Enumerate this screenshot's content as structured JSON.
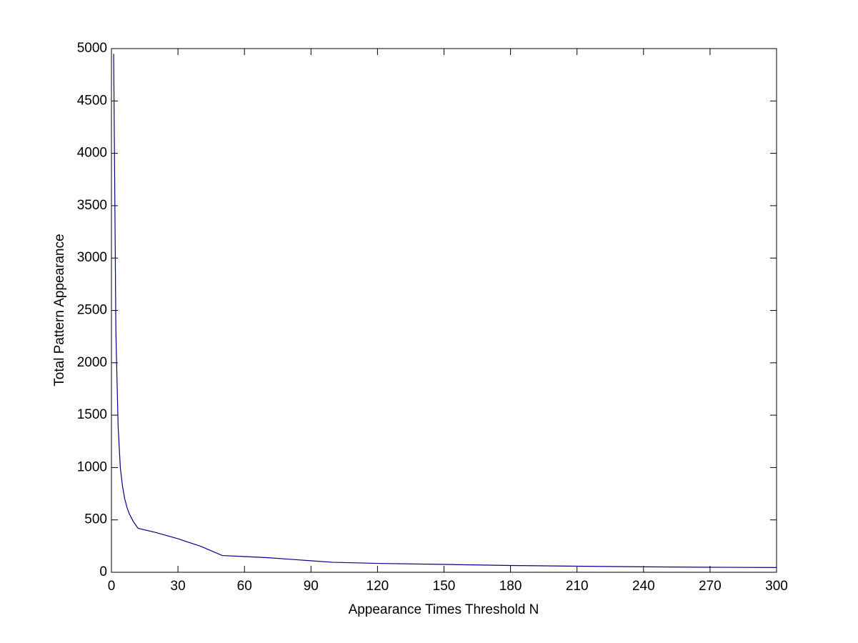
{
  "chart_data": {
    "type": "line",
    "x_label": "Appearance Times Threshold N",
    "y_label": "Total Pattern Appearance",
    "x": [
      1,
      2,
      3,
      4,
      5,
      6,
      7,
      8,
      10,
      12,
      20,
      30,
      40,
      50,
      60,
      70,
      80,
      90,
      100,
      120,
      150,
      180,
      210,
      240,
      270,
      300
    ],
    "series": [
      {
        "color": "#00008b",
        "values": [
          4950,
          2300,
          1400,
          1000,
          820,
          700,
          620,
          560,
          480,
          420,
          380,
          320,
          250,
          160,
          150,
          140,
          125,
          110,
          95,
          85,
          75,
          65,
          58,
          52,
          48,
          45
        ]
      }
    ],
    "xlim": [
      0,
      300
    ],
    "xticks": [
      0,
      30,
      60,
      90,
      120,
      150,
      180,
      210,
      240,
      270,
      300
    ],
    "ylim": [
      0,
      5000
    ],
    "yticks": [
      0,
      500,
      1000,
      1500,
      2000,
      2500,
      3000,
      3500,
      4000,
      4500,
      5000
    ],
    "grid": false
  }
}
